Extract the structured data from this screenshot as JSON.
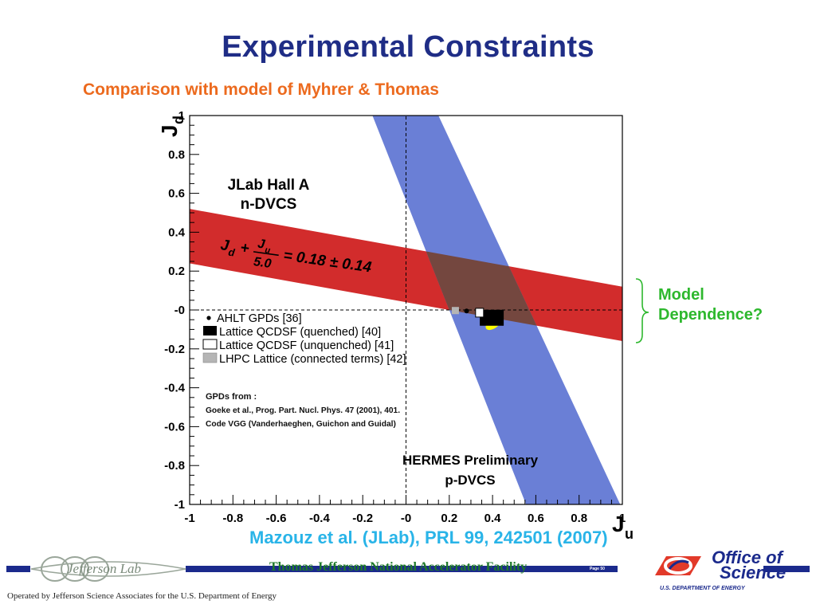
{
  "slide": {
    "title": "Experimental Constraints",
    "subtitle": "Comparison with model of Myhrer & Thomas"
  },
  "chart_data": {
    "type": "band-constraint",
    "xlabel": "J",
    "xlabel_sub": "u",
    "ylabel": "J",
    "ylabel_sub": "d",
    "xlim": [
      -1,
      1
    ],
    "ylim": [
      -1,
      1
    ],
    "xticks": [
      "-1",
      "-0.8",
      "-0.6",
      "-0.4",
      "-0.2",
      "-0",
      "0.2",
      "0.4",
      "0.6",
      "0.8",
      "1"
    ],
    "yticks": [
      "-1",
      "-0.8",
      "-0.6",
      "-0.4",
      "-0.2",
      "-0",
      "0.2",
      "0.4",
      "0.6",
      "0.8",
      "1"
    ],
    "bands": [
      {
        "name": "JLab Hall A n-DVCS",
        "label_lines": [
          "JLab Hall A",
          "n-DVCS"
        ],
        "formula": "J_d + J_u/5.0 = 0.18 ± 0.14",
        "formula_parts": {
          "jd": "J",
          "jd_sub": "d",
          "plus": "+",
          "ju": "J",
          "ju_sub": "u",
          "denom": "5.0",
          "rhs": "= 0.18 ± 0.14"
        },
        "relation": {
          "slope": -0.2,
          "center": 0.18,
          "half_width": 0.14
        },
        "color": "#d22c2c"
      },
      {
        "name": "HERMES Preliminary p-DVCS",
        "label_lines": [
          "HERMES Preliminary",
          "p-DVCS"
        ],
        "points_low_edge": [
          [
            -0.155,
            1.0
          ],
          [
            0.555,
            -1.0
          ]
        ],
        "points_high_edge": [
          [
            0.15,
            1.0
          ],
          [
            0.99,
            -1.0
          ]
        ],
        "color": "#6a7fd6"
      }
    ],
    "overlap_color": "#74473f",
    "points": [
      {
        "name": "AHLT GPDs [36]",
        "marker": "dot",
        "x": 0.28,
        "y": -0.005,
        "color": "#000000"
      },
      {
        "name": "Lattice QCDSF (quenched) [40]",
        "marker": "filled-square",
        "x": 0.4,
        "y": -0.04,
        "color": "#000000"
      },
      {
        "name": "Lattice QCDSF (unquenched) [41]",
        "marker": "open-square",
        "x": 0.34,
        "y": -0.02,
        "color": "#ffffff"
      },
      {
        "name": "LHPC Lattice (connected terms) [42]",
        "marker": "grey-square",
        "x": 0.23,
        "y": -0.005,
        "color": "#b5b5b5"
      }
    ],
    "highlight": {
      "shape": "ellipse",
      "x": 0.4,
      "y": -0.07,
      "color": "#ffff00"
    },
    "legend_position": "middle-left",
    "gpd_note": [
      "GPDs from :",
      "Goeke et al., Prog. Part. Nucl. Phys. 47 (2001), 401.",
      "Code VGG (Vanderhaeghen, Guichon and Guidal)"
    ]
  },
  "annotation": {
    "line1": "Model",
    "line2": "Dependence?",
    "color": "#2eb82e"
  },
  "citation": {
    "text": "Mazouz et al. (JLab), PRL 99, 242501 (2007)"
  },
  "footer": {
    "logo_text": "Jefferson Lab",
    "facility": "Thomas Jefferson National Accelerator Facility",
    "page": "Page 50",
    "operated_by": "Operated by Jefferson Science Associates for the U.S. Department of Energy",
    "office_line1": "Office of",
    "office_line2": "Science",
    "doe": "U.S. DEPARTMENT OF ENERGY"
  }
}
